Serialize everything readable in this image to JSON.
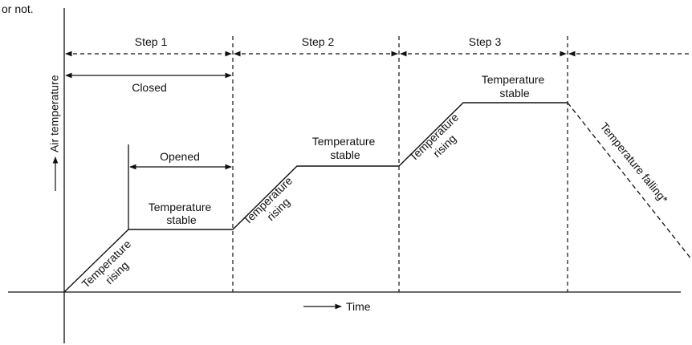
{
  "fragment": "or not.",
  "axes": {
    "y_label": "Air temperature",
    "x_label": "Time"
  },
  "steps": [
    "Step 1",
    "Step 2",
    "Step 3"
  ],
  "spans": {
    "closed": "Closed",
    "opened": "Opened"
  },
  "phases": {
    "rising": [
      "Temperature",
      "rising"
    ],
    "stable": [
      "Temperature",
      "stable"
    ],
    "falling": "Temperature falling*"
  },
  "colors": {
    "ink": "#111111",
    "background": "#ffffff"
  }
}
